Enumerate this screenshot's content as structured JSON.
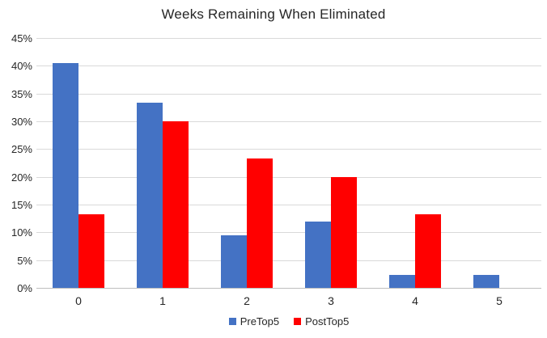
{
  "chart_data": {
    "type": "bar",
    "title": "Weeks Remaining When Eliminated",
    "xlabel": "",
    "ylabel": "",
    "categories": [
      "0",
      "1",
      "2",
      "3",
      "4",
      "5"
    ],
    "series": [
      {
        "name": "PreTop5",
        "color": "#4472C4",
        "values": [
          40.5,
          33.3,
          9.5,
          11.9,
          2.4,
          2.4
        ]
      },
      {
        "name": "PostTop5",
        "color": "#FF0000",
        "values": [
          13.3,
          30.0,
          23.3,
          20.0,
          13.3,
          0
        ]
      }
    ],
    "ylim": [
      0,
      45
    ],
    "ytick_step": 5,
    "ytick_labels": [
      "0%",
      "5%",
      "10%",
      "15%",
      "20%",
      "25%",
      "30%",
      "35%",
      "40%",
      "45%"
    ],
    "grid": true,
    "legend_position": "bottom-center",
    "colors": {
      "gridline": "#D9D9D9",
      "axis_line": "#BFBFBF",
      "text": "#262626",
      "background": "#FFFFFF"
    }
  }
}
